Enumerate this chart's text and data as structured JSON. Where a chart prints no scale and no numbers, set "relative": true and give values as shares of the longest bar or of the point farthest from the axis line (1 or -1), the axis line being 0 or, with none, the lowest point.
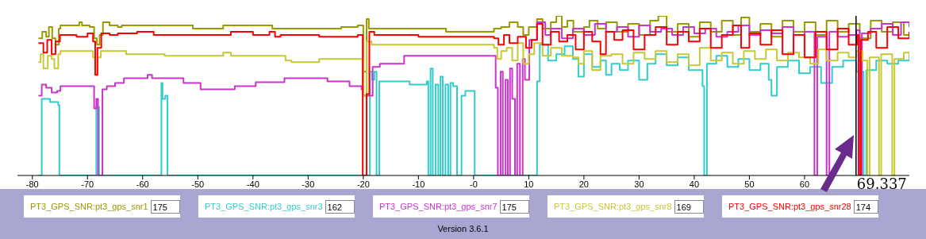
{
  "chart_data": {
    "type": "step",
    "relative": true,
    "legend": "bottom",
    "grid": false,
    "tick_labels": "x",
    "marker": "none",
    "line_style": "solid",
    "xlim": [
      -82.7,
      79
    ],
    "xticks": [
      -80,
      -70,
      -60,
      -50,
      -40,
      -30,
      -20,
      -10,
      {
        "value": 0,
        "label": "-0"
      },
      10,
      20,
      30,
      40,
      50,
      60
    ],
    "ref_lines": [
      {
        "axis": "x",
        "value": 69.337,
        "label": "69.337",
        "color": "#000000"
      }
    ],
    "annotations": [
      "175",
      "162",
      "175",
      "169",
      "174",
      "Version 3.6.1"
    ],
    "series": [
      {
        "name": "PT3_GPS_SNR:pt3_gps_snr1",
        "color": "#999900",
        "x": [
          -78.9,
          -78.2,
          -77.5,
          -77,
          -76.4,
          -75.8,
          -75.2,
          -74.9,
          -71.5,
          -71,
          -69.6,
          -68.8,
          -68.3,
          -67.8,
          -67.2,
          -66,
          -64.5,
          -63.8,
          -50.9,
          -45.4,
          -36.5,
          -28.3,
          -24,
          -21,
          -20,
          -19.4,
          -19,
          -10.6,
          -5,
          3.7,
          5,
          6.5,
          8,
          9,
          10,
          11.5,
          12.5,
          14,
          15,
          16,
          17,
          18.1,
          20,
          21,
          22.5,
          24,
          26,
          28,
          30,
          32,
          33.5,
          35,
          37,
          39,
          41,
          43,
          45,
          47,
          48.5,
          50,
          52,
          54,
          56,
          58,
          60,
          62,
          64,
          66,
          68,
          70,
          72,
          74,
          76,
          78,
          79
        ],
        "values": [
          0.86,
          0.9,
          0.87,
          0.93,
          0.86,
          0.82,
          0.92,
          0.94,
          0.96,
          0.94,
          0.93,
          0.86,
          0.82,
          0.88,
          0.96,
          0.94,
          0.93,
          0.94,
          0.92,
          0.94,
          0.92,
          0.92,
          0.93,
          0.94,
          0.65,
          0.98,
          0.92,
          0.92,
          0.9,
          0.92,
          0.93,
          0.96,
          0.93,
          0.88,
          0.93,
          0.98,
          0.92,
          0.96,
          1.0,
          0.93,
          0.97,
          0.9,
          0.93,
          0.97,
          0.92,
          0.96,
          0.9,
          0.95,
          0.88,
          0.97,
          1.0,
          0.9,
          0.95,
          0.87,
          0.96,
          0.9,
          0.97,
          0.88,
          0.99,
          0.9,
          0.95,
          0.87,
          0.97,
          0.9,
          0.96,
          0.88,
          0.97,
          0.9,
          0.95,
          0.86,
          0.97,
          0.9,
          0.96,
          0.88,
          0.9
        ]
      },
      {
        "name": "PT3_GPS_SNR:pt3_gps_snr3",
        "color": "#33cccc",
        "x": [
          -78.9,
          -78.3,
          -76.8,
          -75.3,
          -75.1,
          -68.4,
          -67.9,
          -56.6,
          -56.4,
          -55.9,
          -55.5,
          -18.8,
          -18.4,
          -18,
          -17.6,
          -17.1,
          -11.6,
          -8.5,
          -8.2,
          -7.8,
          -7.4,
          -6.9,
          -6.4,
          -6,
          -5.6,
          -5.1,
          -4.6,
          -4.2,
          -3.7,
          -3,
          -2.2,
          -1.5,
          -0.8,
          0.2,
          11.5,
          12,
          13.5,
          15,
          16.5,
          18,
          19,
          20,
          21.5,
          23,
          24,
          25,
          26.5,
          28,
          30,
          31.5,
          33,
          35,
          37,
          39,
          41.5,
          41.8,
          42.3,
          44,
          46,
          48,
          50,
          52,
          53.5,
          54,
          55,
          57,
          59,
          61,
          63,
          65,
          67,
          69.4,
          70.7,
          71.2,
          73,
          75,
          77,
          79
        ],
        "values": [
          0,
          0.48,
          0.46,
          0.44,
          0,
          0.43,
          0,
          0.58,
          0.48,
          0.5,
          0,
          0.65,
          0.6,
          0.65,
          0,
          0.59,
          0.57,
          0.59,
          0,
          0.67,
          0,
          0.57,
          0,
          0.62,
          0,
          0.57,
          0,
          0.58,
          0.56,
          0,
          0.5,
          0.53,
          0.53,
          0,
          0.59,
          0.82,
          0.72,
          0.76,
          0.81,
          0.73,
          0.62,
          0.76,
          0.68,
          0.72,
          0.63,
          0.7,
          0.66,
          0.72,
          0.6,
          0.7,
          0.76,
          0.69,
          0.74,
          0.66,
          0.56,
          0,
          0.7,
          0.75,
          0.68,
          0.73,
          0.66,
          0.7,
          0.6,
          0.5,
          0.68,
          0.72,
          0.64,
          0.68,
          0.58,
          0.68,
          0.72,
          0.65,
          0,
          0.66,
          0.72,
          0.7,
          0.72,
          0.73
        ]
      },
      {
        "name": "PT3_GPS_SNR:pt3_gps_snr7",
        "color": "#cc33cc",
        "x": [
          -78.9,
          -78.3,
          -77.5,
          -76.5,
          -75.5,
          -74.9,
          -69.2,
          -68.8,
          -68.4,
          -68.1,
          -67.3,
          -66.5,
          -65,
          -63.4,
          -59.1,
          -58.3,
          -52.6,
          -49.5,
          -43.3,
          -39.5,
          -34.3,
          -26.5,
          -22.5,
          -20.3,
          -20,
          -18.3,
          -17,
          -12.6,
          3.7,
          4,
          4.4,
          4.9,
          5.3,
          5.8,
          6.2,
          6.6,
          7,
          7.5,
          7.9,
          8.4,
          8.9,
          9.3,
          10.1,
          11.5,
          13,
          14,
          16,
          18,
          20,
          22,
          24,
          26,
          28,
          30,
          32,
          34,
          36,
          38,
          40,
          42,
          44,
          46,
          48,
          50,
          52,
          54,
          56,
          58,
          60,
          61.8,
          62.3,
          64,
          64.5,
          66,
          68,
          69.4,
          70,
          70.4,
          72,
          74,
          76,
          77.5,
          79
        ],
        "values": [
          0.5,
          0.57,
          0.55,
          0.52,
          0.53,
          0.56,
          0.56,
          0.42,
          0.48,
          0,
          0.54,
          0.56,
          0.58,
          0.61,
          0.63,
          0.61,
          0.58,
          0.54,
          0.56,
          0.585,
          0.61,
          0.59,
          0.56,
          0.54,
          0.5,
          0.68,
          0.7,
          0.75,
          0.75,
          0.55,
          0,
          0.65,
          0,
          0.6,
          0,
          0.67,
          0.48,
          0,
          0.7,
          0,
          0.73,
          0.6,
          0.85,
          0.96,
          0.88,
          0.92,
          0.86,
          0.92,
          0.88,
          0.95,
          0.9,
          0.93,
          0.87,
          0.94,
          0.9,
          0.92,
          0.88,
          0.93,
          0.89,
          0.92,
          0.87,
          0.9,
          0.94,
          0.88,
          0.91,
          0.89,
          0.93,
          0.88,
          0.9,
          0,
          0.87,
          0,
          0.9,
          0.87,
          0.88,
          0.91,
          0,
          0.89,
          0.92,
          0.95,
          0.88,
          0.96,
          0.93
        ]
      },
      {
        "name": "PT3_GPS_SNR:pt3_gps_snr8",
        "color": "#c8c832",
        "x": [
          -78.9,
          -78.5,
          -78,
          -77.2,
          -76.5,
          -76,
          -75.3,
          -74.9,
          -70,
          -69,
          -68.6,
          -68.2,
          -67.6,
          -64.5,
          -63,
          -56,
          -45.4,
          -44,
          -34.1,
          -33,
          -28,
          -20,
          -19.4,
          -18.5,
          -10,
          3.7,
          4.3,
          5,
          6,
          7,
          8,
          9,
          10,
          11,
          12.5,
          14,
          16,
          18,
          19,
          20,
          21.5,
          23,
          25,
          27,
          29,
          31,
          33,
          35,
          37,
          39,
          41,
          43,
          45,
          47,
          49,
          51,
          53,
          55,
          57,
          59,
          61,
          62.5,
          64,
          66,
          68,
          69.4,
          70.5,
          71.4,
          71.8,
          73.5,
          73.9,
          75.9,
          76.3,
          78,
          79
        ],
        "values": [
          0.71,
          0.76,
          0.67,
          0.75,
          0.73,
          0.67,
          0.76,
          0.78,
          0.78,
          0.74,
          0.63,
          0.74,
          0.78,
          0.78,
          0.76,
          0.75,
          0.77,
          0.75,
          0.72,
          0.71,
          0.73,
          0.5,
          0.84,
          0.82,
          0.82,
          0.8,
          0.73,
          0.78,
          0.8,
          0.72,
          0.83,
          0.7,
          0.76,
          0.83,
          0.75,
          0.8,
          0.75,
          0.74,
          0.7,
          0.78,
          0.66,
          0.75,
          0.76,
          0.7,
          0.77,
          0.73,
          0.78,
          0.71,
          0.76,
          0.69,
          0.8,
          0.72,
          0.77,
          0.7,
          0.78,
          0.73,
          0.79,
          0.72,
          0.77,
          0.74,
          0.7,
          0.79,
          0.72,
          0.77,
          0.74,
          0.78,
          0.72,
          0,
          0.74,
          0,
          0.76,
          0,
          0.73,
          0.77,
          0.73
        ]
      },
      {
        "name": "PT3_GPS_SNR:pt3_gps_snr28",
        "color": "#ff0000",
        "x": [
          -78.9,
          -78,
          -77.3,
          -76.5,
          -75.8,
          -75,
          -72,
          -70,
          -69,
          -68.6,
          -68.2,
          -67.5,
          -66,
          -64.5,
          -61,
          -58,
          -44,
          -40,
          -37,
          -36,
          -35,
          -28,
          -21,
          -20.1,
          -19.4,
          -18.9,
          -18,
          -10,
          3.7,
          4.5,
          5.5,
          6.5,
          8,
          9.5,
          10.5,
          11.5,
          12.5,
          14,
          15.5,
          17,
          18.5,
          20,
          21.5,
          23,
          24,
          25.5,
          27,
          29,
          31,
          33,
          35,
          37,
          39,
          41,
          43,
          45,
          47,
          48.5,
          50,
          52,
          54,
          56,
          58,
          60,
          62,
          64,
          66,
          68,
          69.5,
          69.8,
          70.2,
          71.5,
          73,
          75,
          77,
          79
        ],
        "values": [
          0.83,
          0.77,
          0.85,
          0.76,
          0.84,
          0.88,
          0.87,
          0.89,
          0.84,
          0.63,
          0.8,
          0.89,
          0.88,
          0.89,
          0.9,
          0.88,
          0.9,
          0.88,
          0.9,
          0.87,
          0.88,
          0.87,
          0.88,
          0,
          0.51,
          0.9,
          0.88,
          0.87,
          0.86,
          0.82,
          0.88,
          0.83,
          0.87,
          0.8,
          0.85,
          0.95,
          0.82,
          0.9,
          0.84,
          0.88,
          0.79,
          0.9,
          0.84,
          0.76,
          0.9,
          0.85,
          0.91,
          0.79,
          0.88,
          0.93,
          0.82,
          0.9,
          0.84,
          0.92,
          0.8,
          0.88,
          0.94,
          0.8,
          0.89,
          0.82,
          0.91,
          0.76,
          0.88,
          0.74,
          0.9,
          0.79,
          0.92,
          0.82,
          0.88,
          0,
          0.85,
          0.9,
          0.8,
          0.93,
          0.86,
          0.9
        ]
      }
    ]
  }
}
